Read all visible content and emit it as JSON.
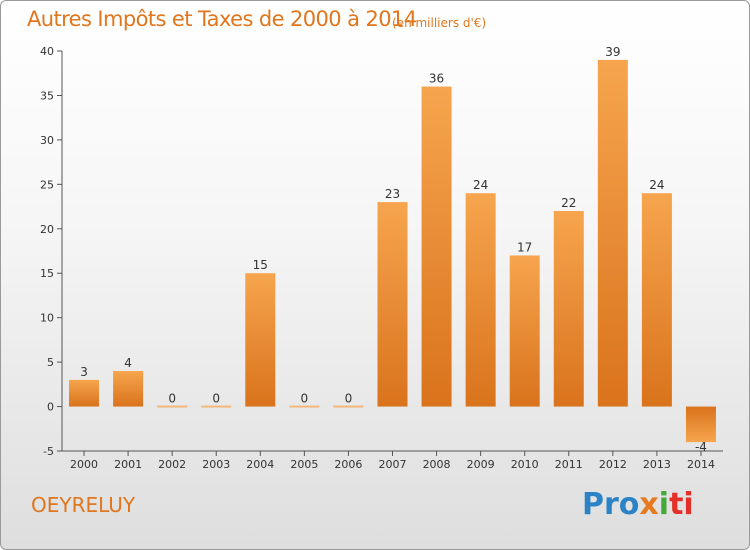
{
  "header": {
    "title": "Autres Impôts et Taxes de 2000 à 2014",
    "subtitle": "(en milliers d'€)"
  },
  "footer": {
    "place": "OEYRELUY",
    "brand": [
      "Pro",
      "x",
      "i",
      "ti"
    ]
  },
  "colors": {
    "accent": "#e0761e",
    "bar_light": "#f6a54e",
    "bar_dark": "#d9731c",
    "brand_blue": "#2b83c6",
    "brand_green": "#45a83a",
    "brand_red": "#e3302b"
  },
  "chart_data": {
    "type": "bar",
    "title": "Autres Impôts et Taxes de 2000 à 2014",
    "subtitle": "(en milliers d'€)",
    "categories": [
      "2000",
      "2001",
      "2002",
      "2003",
      "2004",
      "2005",
      "2006",
      "2007",
      "2008",
      "2009",
      "2010",
      "2011",
      "2012",
      "2013",
      "2014"
    ],
    "values": [
      3,
      4,
      0,
      0,
      15,
      0,
      0,
      23,
      36,
      24,
      17,
      22,
      39,
      24,
      -4
    ],
    "data_labels": [
      "3",
      "4",
      "0",
      "0",
      "15",
      "0",
      "0",
      "23",
      "36",
      "24",
      "17",
      "22",
      "39",
      "24",
      "-4"
    ],
    "ylim": [
      -5,
      40
    ],
    "yticks": [
      -5,
      0,
      5,
      10,
      15,
      20,
      25,
      30,
      35,
      40
    ],
    "grid": false,
    "xlabel": "",
    "ylabel": ""
  }
}
